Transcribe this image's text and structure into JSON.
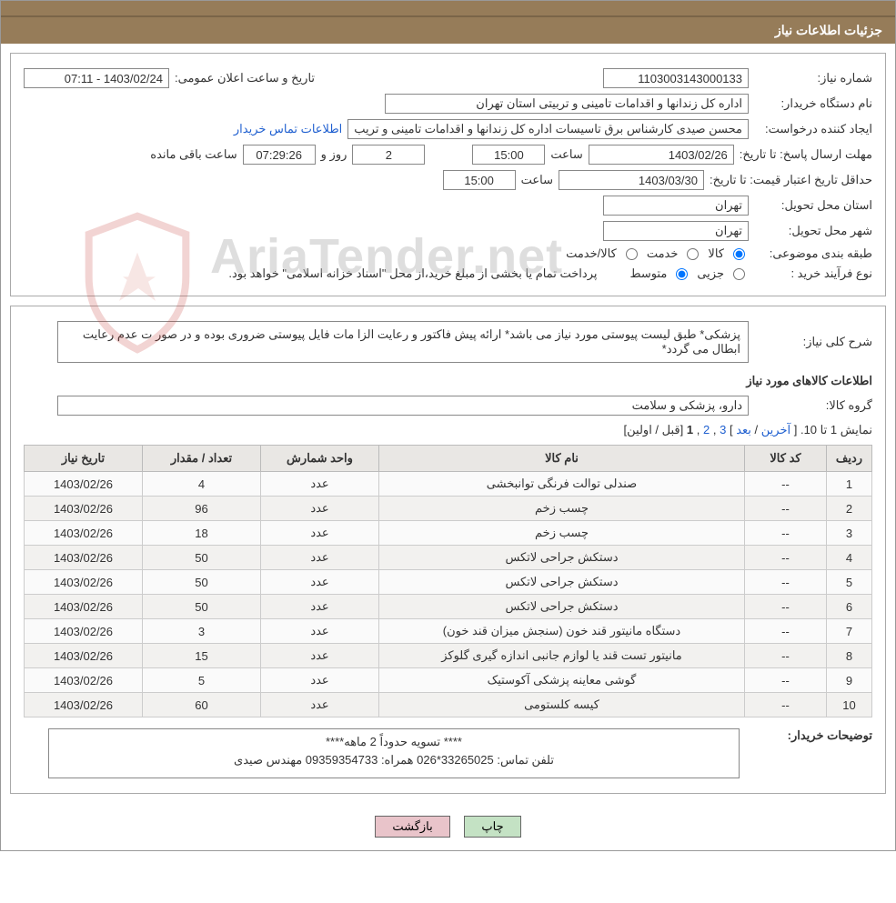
{
  "header": {
    "title": "جزئیات اطلاعات نیاز"
  },
  "info": {
    "need_no_label": "شماره نیاز:",
    "need_no": "1103003143000133",
    "announce_label": "تاریخ و ساعت اعلان عمومی:",
    "announce": "1403/02/24 - 07:11",
    "buyer_org_label": "نام دستگاه خریدار:",
    "buyer_org": "اداره کل زندانها و اقدامات تامینی و تربیتی استان تهران",
    "requester_label": "ایجاد کننده درخواست:",
    "requester": "محسن صیدی کارشناس برق تاسیسات  اداره کل زندانها و اقدامات تامینی و تریب",
    "buyer_contact_link": "اطلاعات تماس خریدار",
    "response_deadline_label": "مهلت ارسال پاسخ:  تا تاریخ:",
    "response_date": "1403/02/26",
    "hour_label": "ساعت",
    "response_time": "15:00",
    "days_and_label": "روز و",
    "days_remaining": "2",
    "countdown": "07:29:26",
    "remaining_label": "ساعت باقی مانده",
    "price_valid_label": "حداقل تاریخ اعتبار قیمت: تا تاریخ:",
    "price_valid_date": "1403/03/30",
    "price_valid_time": "15:00",
    "delivery_province_label": "استان محل تحویل:",
    "delivery_province": "تهران",
    "delivery_city_label": "شهر محل تحویل:",
    "delivery_city": "تهران",
    "category_label": "طبقه بندی موضوعی:",
    "cat_goods": "کالا",
    "cat_service": "خدمت",
    "cat_goods_service": "کالا/خدمت",
    "process_type_label": "نوع فرآیند خرید :",
    "process_partial": "جزیی",
    "process_medium": "متوسط",
    "process_note": "پرداخت تمام یا بخشی از مبلغ خرید،از محل \"اسناد خزانه اسلامی\" خواهد بود."
  },
  "need": {
    "desc_label": "شرح کلی نیاز:",
    "desc": "پزشکی* طبق لیست پیوستی مورد نیاز می باشد* ارائه پیش فاکتور و رعایت الزا مات فایل پیوستی ضروری بوده و در صور ت عدم رعایت ابطال می گردد*",
    "items_title": "اطلاعات کالاهای مورد نیاز",
    "group_label": "گروه کالا:",
    "group": "دارو، پزشکی و سلامت"
  },
  "pager": {
    "prefix": "نمایش 1 تا 10. [",
    "last": "آخرین",
    "next": "بعد",
    "sep": " / ",
    "p3": "3",
    "p2": "2",
    "p1": "1",
    "suffix": " [قبل / اولین]",
    "comma": " ,",
    "close": "] "
  },
  "table": {
    "headers": [
      "ردیف",
      "کد کالا",
      "نام کالا",
      "واحد شمارش",
      "تعداد / مقدار",
      "تاریخ نیاز"
    ],
    "rows": [
      [
        "1",
        "--",
        "صندلی توالت فرنگی توانبخشی",
        "عدد",
        "4",
        "1403/02/26"
      ],
      [
        "2",
        "--",
        "چسب زخم",
        "عدد",
        "96",
        "1403/02/26"
      ],
      [
        "3",
        "--",
        "چسب زخم",
        "عدد",
        "18",
        "1403/02/26"
      ],
      [
        "4",
        "--",
        "دستکش جراحی لاتکس",
        "عدد",
        "50",
        "1403/02/26"
      ],
      [
        "5",
        "--",
        "دستکش جراحی لاتکس",
        "عدد",
        "50",
        "1403/02/26"
      ],
      [
        "6",
        "--",
        "دستکش جراحی لاتکس",
        "عدد",
        "50",
        "1403/02/26"
      ],
      [
        "7",
        "--",
        "دستگاه مانیتور قند خون (سنجش میزان قند خون)",
        "عدد",
        "3",
        "1403/02/26"
      ],
      [
        "8",
        "--",
        "مانیتور تست قند یا لوازم جانبی اندازه گیری گلوکز",
        "عدد",
        "15",
        "1403/02/26"
      ],
      [
        "9",
        "--",
        "گوشی معاینه پزشکی آکوستیک",
        "عدد",
        "5",
        "1403/02/26"
      ],
      [
        "10",
        "--",
        "کیسه کلستومی",
        "عدد",
        "60",
        "1403/02/26"
      ]
    ]
  },
  "buyer_notes": {
    "label": "توضیحات خریدار:",
    "line1": "**** تسویه حدوداً 2 ماهه****",
    "line2": "تلفن تماس: 33265025*026       همراه: 09359354733    مهندس صیدی"
  },
  "buttons": {
    "print": "چاپ",
    "back": "بازگشت"
  },
  "watermark": {
    "text": "AriaTender.net"
  }
}
